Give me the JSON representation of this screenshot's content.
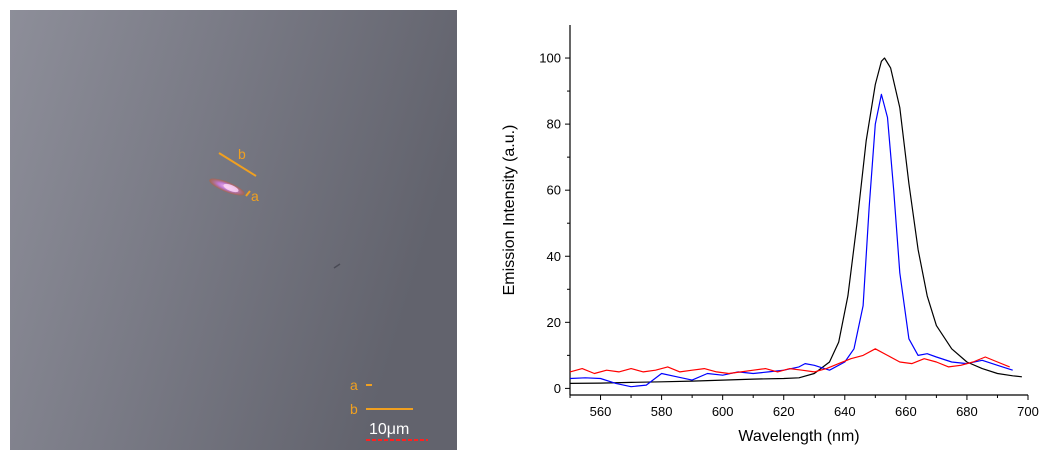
{
  "micrograph": {
    "labels": [
      "a",
      "b"
    ],
    "legend": [
      {
        "label": "a"
      },
      {
        "label": "b"
      }
    ],
    "scale_bar_text": "10μm",
    "colors": {
      "annotation": "#f0a020",
      "scale_bar": "#ff2020"
    }
  },
  "chart_data": {
    "type": "line",
    "xlabel": "Wavelength (nm)",
    "ylabel": "Emission Intensity (a.u.)",
    "xlim": [
      550,
      700
    ],
    "ylim": [
      -2,
      110
    ],
    "xticks": [
      560,
      580,
      600,
      620,
      640,
      660,
      680,
      700
    ],
    "yticks": [
      0,
      20,
      40,
      60,
      80,
      100
    ],
    "grid": false,
    "series": [
      {
        "color": "#000000",
        "x": [
          550,
          560,
          570,
          580,
          590,
          600,
          610,
          620,
          625,
          630,
          635,
          638,
          641,
          644,
          647,
          650,
          652,
          653,
          655,
          658,
          661,
          664,
          667,
          670,
          675,
          680,
          685,
          690,
          695,
          698
        ],
        "y": [
          1.5,
          1.6,
          1.8,
          2.0,
          2.2,
          2.5,
          2.8,
          3.0,
          3.2,
          4.5,
          8,
          14,
          28,
          50,
          75,
          92,
          99,
          100,
          97,
          85,
          62,
          42,
          28,
          19,
          12,
          8,
          6,
          4.5,
          3.8,
          3.5
        ]
      },
      {
        "color": "#0000ff",
        "x": [
          550,
          555,
          560,
          565,
          570,
          575,
          580,
          585,
          590,
          595,
          600,
          605,
          610,
          615,
          620,
          625,
          627,
          630,
          635,
          640,
          643,
          646,
          648,
          650,
          652,
          654,
          656,
          658,
          661,
          664,
          667,
          670,
          675,
          680,
          685,
          690,
          695
        ],
        "y": [
          3,
          3.2,
          3,
          1.5,
          0.5,
          1,
          4.5,
          3.5,
          2.5,
          4.5,
          4,
          5,
          4.5,
          5,
          5.5,
          6.5,
          7.5,
          7,
          5.5,
          8,
          12,
          25,
          55,
          80,
          89,
          82,
          60,
          35,
          15,
          10,
          10.5,
          9.5,
          8,
          7.5,
          8.5,
          7,
          5.5
        ]
      },
      {
        "color": "#ff0000",
        "x": [
          550,
          554,
          558,
          562,
          566,
          570,
          574,
          578,
          582,
          586,
          590,
          594,
          598,
          602,
          606,
          610,
          614,
          618,
          622,
          626,
          630,
          634,
          638,
          642,
          646,
          650,
          654,
          658,
          662,
          666,
          670,
          674,
          678,
          682,
          686,
          690,
          694
        ],
        "y": [
          5,
          6,
          4.5,
          5.5,
          5,
          6,
          5,
          5.5,
          6.5,
          5,
          5.5,
          6,
          5,
          4.5,
          5,
          5.5,
          6,
          5,
          6,
          5.5,
          5,
          6,
          7.5,
          9,
          10,
          12,
          10,
          8,
          7.5,
          9,
          8,
          6.5,
          7,
          8,
          9.5,
          8,
          6.5
        ]
      }
    ]
  }
}
